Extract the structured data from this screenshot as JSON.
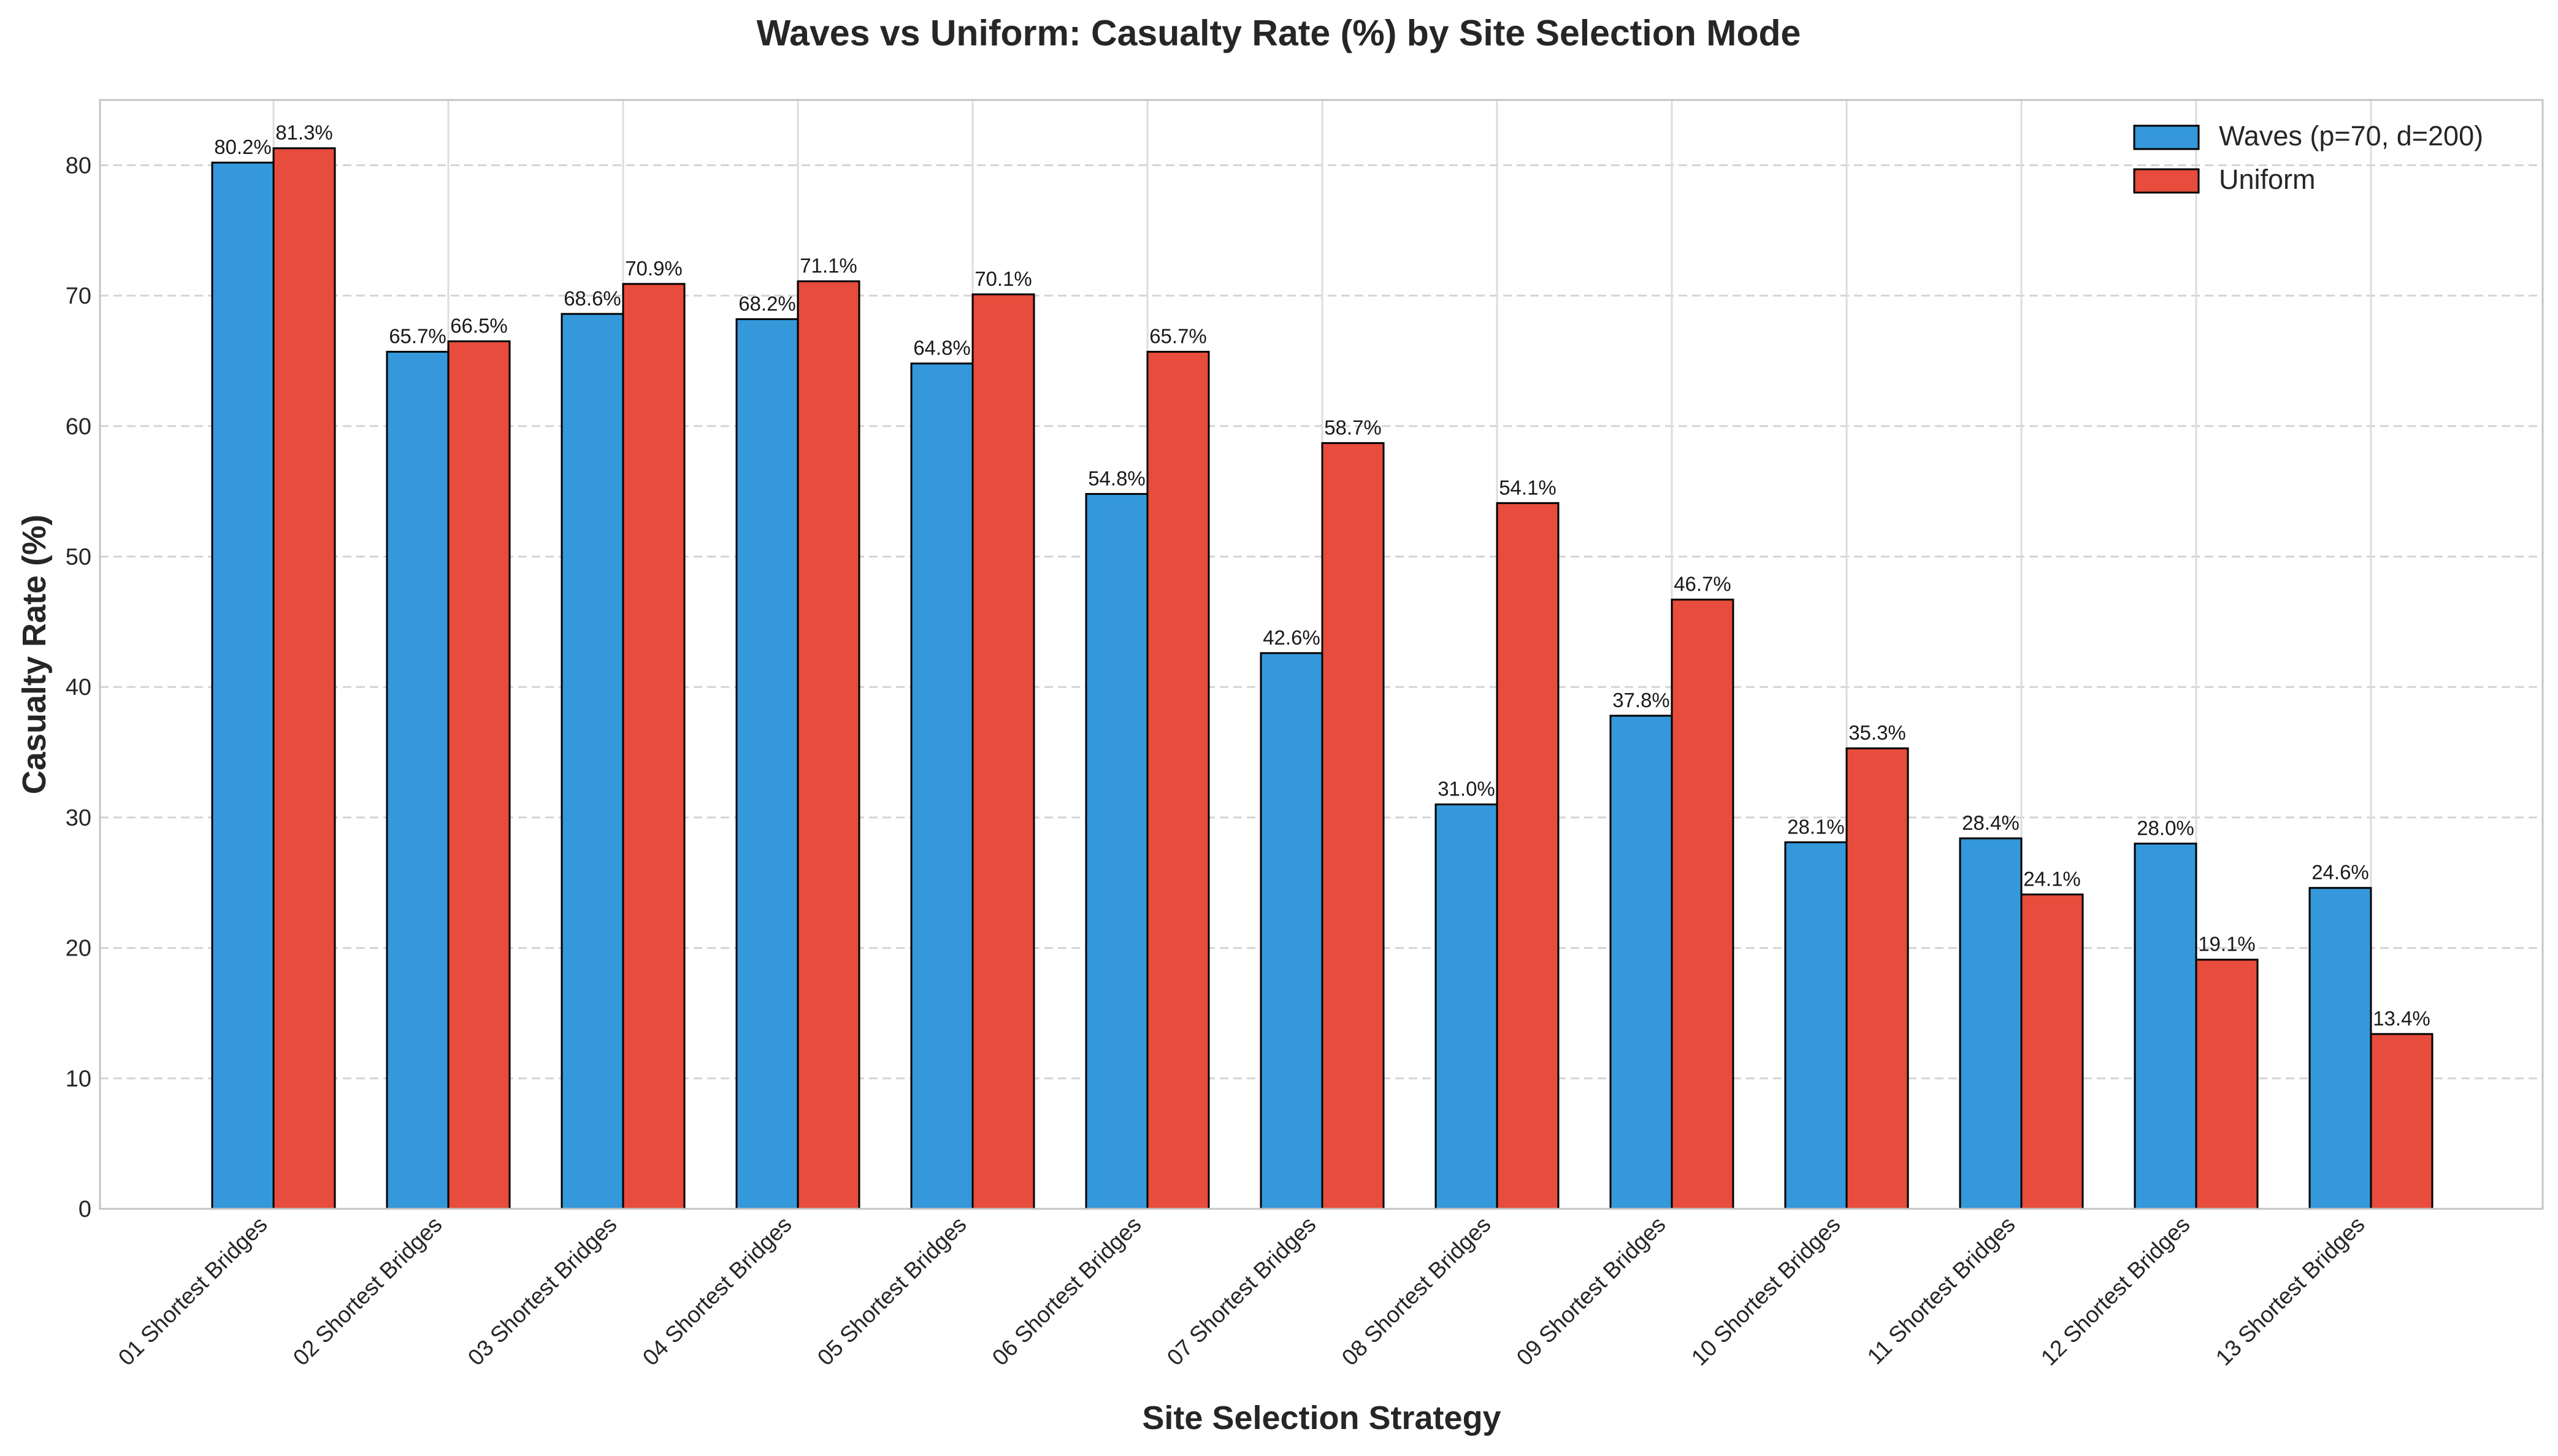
{
  "chart_data": {
    "type": "bar",
    "title": "Waves vs Uniform: Casualty Rate (%) by Site Selection Mode",
    "xlabel": "Site Selection Strategy",
    "ylabel": "Casualty Rate (%)",
    "ylim": [
      0,
      85
    ],
    "yticks": [
      0,
      10,
      20,
      30,
      40,
      50,
      60,
      70,
      80
    ],
    "grid": true,
    "legend_position": "top-right",
    "categories": [
      "01 Shortest Bridges",
      "02 Shortest Bridges",
      "03 Shortest Bridges",
      "04 Shortest Bridges",
      "05 Shortest Bridges",
      "06 Shortest Bridges",
      "07 Shortest Bridges",
      "08 Shortest Bridges",
      "09 Shortest Bridges",
      "10 Shortest Bridges",
      "11 Shortest Bridges",
      "12 Shortest Bridges",
      "13 Shortest Bridges"
    ],
    "series": [
      {
        "name": "Waves (p=70, d=200)",
        "color": "#3498db",
        "values": [
          80.2,
          65.7,
          68.6,
          68.2,
          64.8,
          54.8,
          42.6,
          31.0,
          37.8,
          28.1,
          28.4,
          28.0,
          24.6
        ],
        "labels": [
          "80.2%",
          "65.7%",
          "68.6%",
          "68.2%",
          "64.8%",
          "54.8%",
          "42.6%",
          "31.0%",
          "37.8%",
          "28.1%",
          "28.4%",
          "28.0%",
          "24.6%"
        ]
      },
      {
        "name": "Uniform",
        "color": "#e74c3c",
        "values": [
          81.3,
          66.5,
          70.9,
          71.1,
          70.1,
          65.7,
          58.7,
          54.1,
          46.7,
          35.3,
          24.1,
          19.1,
          13.4
        ],
        "labels": [
          "81.3%",
          "66.5%",
          "70.9%",
          "71.1%",
          "70.1%",
          "65.7%",
          "58.7%",
          "54.1%",
          "46.7%",
          "35.3%",
          "24.1%",
          "19.1%",
          "13.4%"
        ]
      }
    ]
  }
}
